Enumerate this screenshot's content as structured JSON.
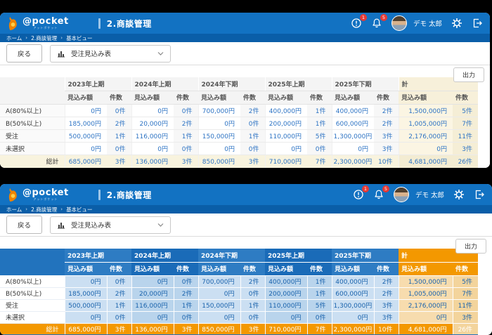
{
  "app": {
    "logo_text": "@pocket",
    "logo_subtext": "アットポケット",
    "page_title": "2.商談管理"
  },
  "header_right": {
    "alert_badge": "1",
    "bell_badge": "5",
    "user_name": "デモ 太郎"
  },
  "breadcrumb": {
    "separator": "›",
    "items": [
      "ホーム",
      "2.商談管理",
      "基本ビュー"
    ]
  },
  "toolbar": {
    "back_label": "戻る",
    "view_label": "受注見込み表"
  },
  "export_label": "出力",
  "table": {
    "period_groups": [
      "2023年上期",
      "2024年上期",
      "2024年下期",
      "2025年上期",
      "2025年下期"
    ],
    "total_group": "計",
    "sub_headers": {
      "amount": "見込み額",
      "count": "件数"
    },
    "rows": [
      {
        "label": "A(80%以上)",
        "cells": [
          "0円",
          "0件",
          "0円",
          "0件",
          "700,000円",
          "2件",
          "400,000円",
          "1件",
          "400,000円",
          "2件",
          "1,500,000円",
          "5件"
        ]
      },
      {
        "label": "B(50%以上)",
        "cells": [
          "185,000円",
          "2件",
          "20,000円",
          "2件",
          "0円",
          "0件",
          "200,000円",
          "1件",
          "600,000円",
          "2件",
          "1,005,000円",
          "7件"
        ]
      },
      {
        "label": "受注",
        "cells": [
          "500,000円",
          "1件",
          "116,000円",
          "1件",
          "150,000円",
          "1件",
          "110,000円",
          "5件",
          "1,300,000円",
          "3件",
          "2,176,000円",
          "11件"
        ]
      },
      {
        "label": "未選択",
        "cells": [
          "0円",
          "0件",
          "0円",
          "0件",
          "0円",
          "0件",
          "0円",
          "0件",
          "0円",
          "3件",
          "0円",
          "3件"
        ]
      }
    ],
    "total_row": {
      "label": "総計",
      "cells": [
        "685,000円",
        "3件",
        "136,000円",
        "3件",
        "850,000円",
        "3件",
        "710,000円",
        "7件",
        "2,300,000円",
        "10件",
        "4,681,000円",
        "26件"
      ]
    }
  },
  "colors": {
    "app_bar_blue": "#1272c2",
    "breadcrumb_blue": "#0a5ea8",
    "header_blue_light": "#2e7cc3",
    "header_blue_dark": "#1a6bb8",
    "accent_orange": "#f39800",
    "value_blue": "#2e74c4",
    "badge_red": "#e53935",
    "total_beige": "#f8f3de"
  }
}
